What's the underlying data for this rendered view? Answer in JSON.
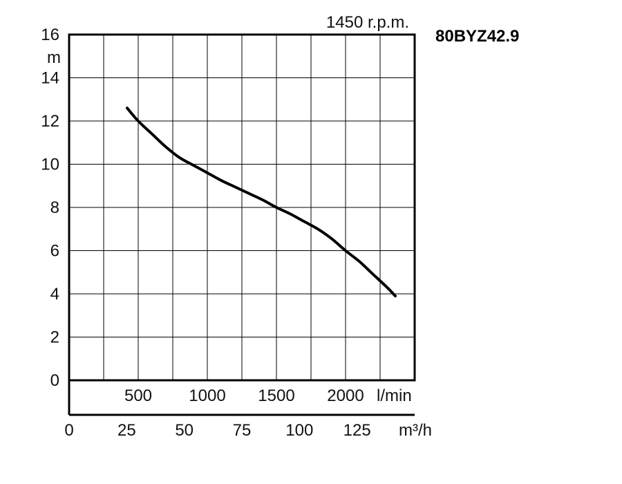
{
  "chart_data": {
    "type": "line",
    "title": "80BYZ42.9",
    "subtitle": "1450 r.p.m.",
    "ylabel": "m",
    "ylim": [
      0,
      16
    ],
    "yticks": [
      "0",
      "2",
      "4",
      "6",
      "8",
      "10",
      "12",
      "14",
      "16"
    ],
    "x_lpm_label": "l/min",
    "x_lpm_ticks": [
      "500",
      "1000",
      "1500",
      "2000"
    ],
    "x_lpm_range": [
      0,
      2500
    ],
    "x_m3h_label": "m³/h",
    "x_m3h_ticks": [
      "0",
      "25",
      "50",
      "75",
      "100",
      "125"
    ],
    "grid": true,
    "series": [
      {
        "x_lpm": [
          420,
          500,
          600,
          700,
          800,
          900,
          1000,
          1100,
          1200,
          1300,
          1400,
          1500,
          1600,
          1700,
          1800,
          1900,
          2000,
          2100,
          2200,
          2300,
          2360
        ],
        "y": [
          12.6,
          12.0,
          11.4,
          10.8,
          10.3,
          9.95,
          9.6,
          9.25,
          8.95,
          8.65,
          8.35,
          8.0,
          7.7,
          7.35,
          7.0,
          6.55,
          6.0,
          5.5,
          4.9,
          4.3,
          3.9
        ]
      }
    ]
  }
}
